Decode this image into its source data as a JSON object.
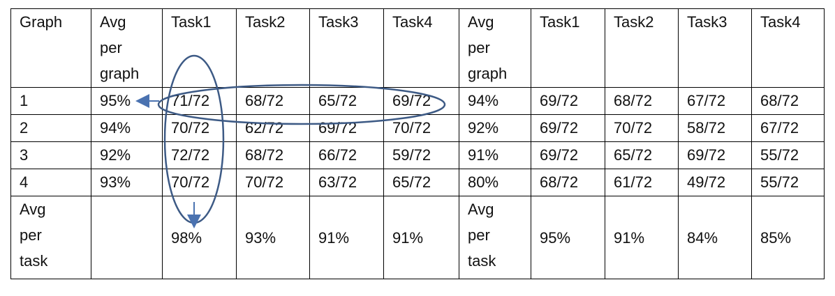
{
  "table": {
    "header": [
      "Graph",
      "Avg per graph",
      "Task1",
      "Task2",
      "Task3",
      "Task4",
      "Avg per graph",
      "Task1",
      "Task2",
      "Task3",
      "Task4"
    ],
    "rows": [
      [
        "1",
        "95%",
        "71/72",
        "68/72",
        "65/72",
        "69/72",
        "94%",
        "69/72",
        "68/72",
        "67/72",
        "68/72"
      ],
      [
        "2",
        "94%",
        "70/72",
        "62/72",
        "69/72",
        "70/72",
        "92%",
        "69/72",
        "70/72",
        "58/72",
        "67/72"
      ],
      [
        "3",
        "92%",
        "72/72",
        "68/72",
        "66/72",
        "59/72",
        "91%",
        "69/72",
        "65/72",
        "69/72",
        "55/72"
      ],
      [
        "4",
        "93%",
        "70/72",
        "70/72",
        "63/72",
        "65/72",
        "80%",
        "68/72",
        "61/72",
        "49/72",
        "55/72"
      ],
      [
        "Avg per task",
        null,
        "98%",
        "93%",
        "91%",
        "91%",
        "Avg per task",
        "95%",
        "91%",
        "84%",
        "85%"
      ]
    ]
  }
}
